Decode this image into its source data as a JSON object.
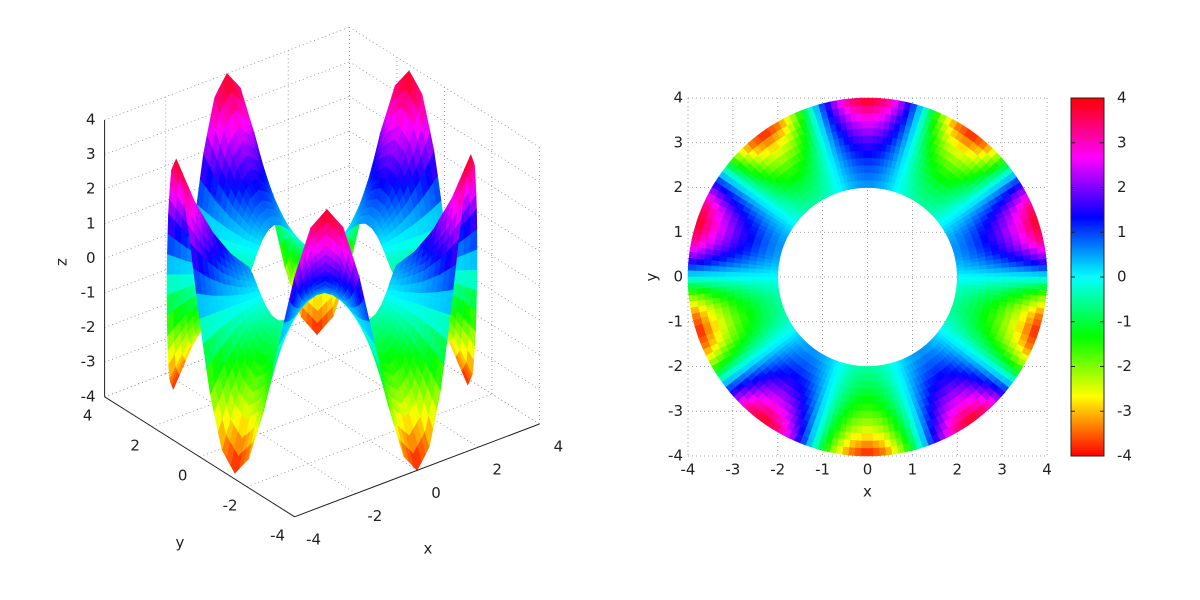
{
  "chart_data": [
    {
      "type": "surface",
      "xlabel": "x",
      "ylabel": "y",
      "zlabel": "z",
      "xlim": [
        -4,
        4
      ],
      "ylim": [
        -4,
        4
      ],
      "zlim": [
        -4,
        4
      ],
      "xticks": [
        -4,
        -2,
        0,
        2,
        4
      ],
      "yticks": [
        -4,
        -2,
        0,
        2,
        4
      ],
      "zticks": [
        -4,
        -3,
        -2,
        -1,
        0,
        1,
        2,
        3,
        4
      ],
      "grid": true,
      "colormap": "hsv",
      "r": [
        2,
        2.5,
        3,
        3.5,
        4
      ],
      "theta": [
        0,
        6,
        12,
        18,
        24,
        30,
        36,
        42,
        48,
        54,
        60,
        66,
        72,
        78,
        84,
        90,
        96,
        102,
        108,
        114,
        120,
        126,
        132,
        138,
        144,
        150,
        156,
        162,
        168,
        174,
        180,
        186,
        192,
        198,
        204,
        210,
        216,
        222,
        228,
        234,
        240,
        246,
        252,
        258,
        264,
        270,
        276,
        282,
        288,
        294,
        300,
        306,
        312,
        318,
        324,
        330,
        336,
        342,
        348,
        354
      ],
      "z": [
        [
          0,
          0.25,
          0.43,
          0.5,
          0.43,
          0.25,
          0,
          -0.25,
          -0.43,
          -0.5,
          -0.43,
          -0.25,
          0,
          0.25,
          0.43,
          0.5,
          0.43,
          0.25,
          0,
          -0.25,
          -0.43,
          -0.5,
          -0.43,
          -0.25,
          0,
          0.25,
          0.43,
          0.5,
          0.43,
          0.25,
          0,
          -0.25,
          -0.43,
          -0.5,
          -0.43,
          -0.25,
          0,
          0.25,
          0.43,
          0.5,
          0.43,
          0.25,
          0,
          -0.25,
          -0.43,
          -0.5,
          -0.43,
          -0.25,
          0,
          0.25,
          0.43,
          0.5,
          0.43,
          0.25,
          0,
          -0.25,
          -0.43,
          -0.5,
          -0.43,
          -0.25
        ],
        [
          0,
          0.49,
          0.85,
          0.98,
          0.85,
          0.49,
          0,
          -0.49,
          -0.85,
          -0.98,
          -0.85,
          -0.49,
          0,
          0.49,
          0.85,
          0.98,
          0.85,
          0.49,
          0,
          -0.49,
          -0.85,
          -0.98,
          -0.85,
          -0.49,
          0,
          0.49,
          0.85,
          0.98,
          0.85,
          0.49,
          0,
          -0.49,
          -0.85,
          -0.98,
          -0.85,
          -0.49,
          0,
          0.49,
          0.85,
          0.98,
          0.85,
          0.49,
          0,
          -0.49,
          -0.85,
          -0.98,
          -0.85,
          -0.49,
          0,
          0.49,
          0.85,
          0.98,
          0.85,
          0.49,
          0,
          -0.49,
          -0.85,
          -0.98,
          -0.85,
          -0.49
        ],
        [
          0,
          0.84,
          1.46,
          1.69,
          1.46,
          0.84,
          0,
          -0.84,
          -1.46,
          -1.69,
          -1.46,
          -0.84,
          0,
          0.84,
          1.46,
          1.69,
          1.46,
          0.84,
          0,
          -0.84,
          -1.46,
          -1.69,
          -1.46,
          -0.84,
          0,
          0.84,
          1.46,
          1.69,
          1.46,
          0.84,
          0,
          -0.84,
          -1.46,
          -1.69,
          -1.46,
          -0.84,
          0,
          0.84,
          1.46,
          1.69,
          1.46,
          0.84,
          0,
          -0.84,
          -1.46,
          -1.69,
          -1.46,
          -0.84,
          0,
          0.84,
          1.46,
          1.69,
          1.46,
          0.84,
          0,
          -0.84,
          -1.46,
          -1.69,
          -1.46,
          -0.84
        ],
        [
          0,
          1.34,
          2.32,
          2.68,
          2.32,
          1.34,
          0,
          -1.34,
          -2.32,
          -2.68,
          -2.32,
          -1.34,
          0,
          1.34,
          2.32,
          2.68,
          2.32,
          1.34,
          0,
          -1.34,
          -2.32,
          -2.68,
          -2.32,
          -1.34,
          0,
          1.34,
          2.32,
          2.68,
          2.32,
          1.34,
          0,
          -1.34,
          -2.32,
          -2.68,
          -2.32,
          -1.34,
          0,
          1.34,
          2.32,
          2.68,
          2.32,
          1.34,
          0,
          -1.34,
          -2.32,
          -2.68,
          -2.32,
          -1.34,
          0,
          1.34,
          2.32,
          2.68,
          2.32,
          1.34,
          0,
          -1.34,
          -2.32,
          -2.68,
          -2.32,
          -1.34
        ],
        [
          0,
          2,
          3.46,
          4,
          3.46,
          2,
          0,
          -2,
          -3.46,
          -4,
          -3.46,
          -2,
          0,
          2,
          3.46,
          4,
          3.46,
          2,
          0,
          -2,
          -3.46,
          -4,
          -3.46,
          -2,
          0,
          2,
          3.46,
          4,
          3.46,
          2,
          0,
          -2,
          -3.46,
          -4,
          -3.46,
          -2,
          0,
          2,
          3.46,
          4,
          3.46,
          2,
          0,
          -2,
          -3.46,
          -4,
          -3.46,
          -2,
          0,
          2,
          3.46,
          4,
          3.46,
          2,
          0,
          -2,
          -3.46,
          -4,
          -3.46,
          -2
        ]
      ]
    },
    {
      "type": "contour",
      "xlabel": "x",
      "ylabel": "y",
      "xlim": [
        -4,
        4
      ],
      "ylim": [
        -4,
        4
      ],
      "xticks": [
        -4,
        -3,
        -2,
        -1,
        0,
        1,
        2,
        3,
        4
      ],
      "yticks": [
        -4,
        -3,
        -2,
        -1,
        0,
        1,
        2,
        3,
        4
      ],
      "grid": true,
      "colormap": "hsv",
      "colorbar": {
        "lim": [
          -4,
          4
        ],
        "ticks": [
          -4,
          -3,
          -2,
          -1,
          0,
          1,
          2,
          3,
          4
        ]
      }
    }
  ]
}
